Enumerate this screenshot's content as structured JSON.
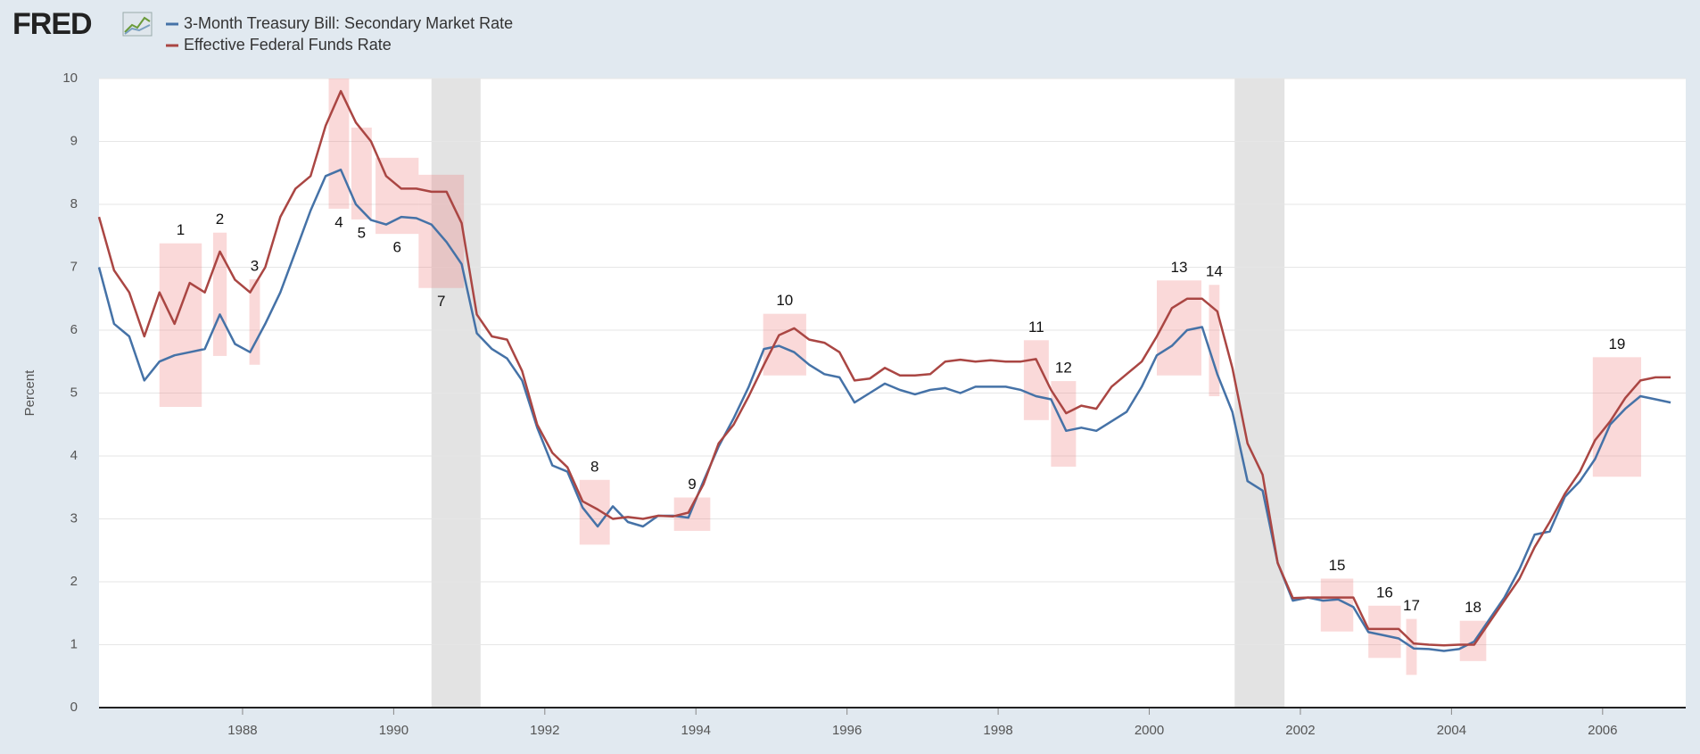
{
  "logo": "FRED",
  "chart_data": {
    "type": "line",
    "ylabel": "Percent",
    "xlim": [
      1986.1,
      2007.1
    ],
    "xticks": [
      1988,
      1990,
      1992,
      1994,
      1996,
      1998,
      2000,
      2002,
      2004,
      2006
    ],
    "ylim": [
      0,
      10
    ],
    "yticks": [
      0,
      1,
      2,
      3,
      4,
      5,
      6,
      7,
      8,
      9,
      10
    ],
    "grid": true,
    "legend": "top-left",
    "x": [
      1986.1,
      1986.3,
      1986.5,
      1986.7,
      1986.9,
      1987.1,
      1987.3,
      1987.5,
      1987.7,
      1987.9,
      1988.1,
      1988.3,
      1988.5,
      1988.7,
      1988.9,
      1989.1,
      1989.3,
      1989.5,
      1989.7,
      1989.9,
      1990.1,
      1990.3,
      1990.5,
      1990.7,
      1990.9,
      1991.1,
      1991.3,
      1991.5,
      1991.7,
      1991.9,
      1992.1,
      1992.3,
      1992.5,
      1992.7,
      1992.9,
      1993.1,
      1993.3,
      1993.5,
      1993.7,
      1993.9,
      1994.1,
      1994.3,
      1994.5,
      1994.7,
      1994.9,
      1995.1,
      1995.3,
      1995.5,
      1995.7,
      1995.9,
      1996.1,
      1996.3,
      1996.5,
      1996.7,
      1996.9,
      1997.1,
      1997.3,
      1997.5,
      1997.7,
      1997.9,
      1998.1,
      1998.3,
      1998.5,
      1998.7,
      1998.9,
      1999.1,
      1999.3,
      1999.5,
      1999.7,
      1999.9,
      2000.1,
      2000.3,
      2000.5,
      2000.7,
      2000.9,
      2001.1,
      2001.3,
      2001.5,
      2001.7,
      2001.9,
      2002.1,
      2002.3,
      2002.5,
      2002.7,
      2002.9,
      2003.1,
      2003.3,
      2003.5,
      2003.7,
      2003.9,
      2004.1,
      2004.3,
      2004.5,
      2004.7,
      2004.9,
      2005.1,
      2005.3,
      2005.5,
      2005.7,
      2005.9,
      2006.1,
      2006.3,
      2006.5,
      2006.7,
      2006.9
    ],
    "series": [
      {
        "name": "3-Month Treasury Bill: Secondary Market Rate",
        "color": "#4572a7",
        "values": [
          7.0,
          6.1,
          5.9,
          5.2,
          5.5,
          5.6,
          5.65,
          5.7,
          6.25,
          5.78,
          5.65,
          6.1,
          6.6,
          7.25,
          7.9,
          8.45,
          8.55,
          8.0,
          7.75,
          7.68,
          7.8,
          7.78,
          7.68,
          7.4,
          7.05,
          5.95,
          5.7,
          5.55,
          5.2,
          4.45,
          3.85,
          3.75,
          3.18,
          2.88,
          3.2,
          2.95,
          2.88,
          3.05,
          3.05,
          3.02,
          3.6,
          4.15,
          4.6,
          5.1,
          5.7,
          5.75,
          5.65,
          5.45,
          5.3,
          5.25,
          4.85,
          5.0,
          5.15,
          5.05,
          4.98,
          5.05,
          5.08,
          5.0,
          5.1,
          5.1,
          5.1,
          5.05,
          4.95,
          4.9,
          4.4,
          4.45,
          4.4,
          4.55,
          4.7,
          5.1,
          5.6,
          5.75,
          6.0,
          6.05,
          5.3,
          4.7,
          3.6,
          3.45,
          2.3,
          1.7,
          1.75,
          1.7,
          1.72,
          1.6,
          1.2,
          1.15,
          1.1,
          0.94,
          0.93,
          0.9,
          0.93,
          1.05,
          1.4,
          1.75,
          2.2,
          2.75,
          2.8,
          3.35,
          3.6,
          3.95,
          4.5,
          4.75,
          4.95,
          4.9,
          4.85
        ]
      },
      {
        "name": "Effective Federal Funds Rate",
        "color": "#aa4643",
        "values": [
          7.8,
          6.95,
          6.6,
          5.9,
          6.6,
          6.1,
          6.75,
          6.6,
          7.25,
          6.8,
          6.6,
          7.0,
          7.8,
          8.25,
          8.45,
          9.25,
          9.8,
          9.3,
          9.0,
          8.45,
          8.25,
          8.25,
          8.2,
          8.2,
          7.7,
          6.25,
          5.9,
          5.85,
          5.35,
          4.5,
          4.05,
          3.82,
          3.28,
          3.15,
          3.0,
          3.03,
          3.0,
          3.05,
          3.04,
          3.1,
          3.55,
          4.2,
          4.5,
          4.95,
          5.45,
          5.92,
          6.03,
          5.85,
          5.8,
          5.65,
          5.2,
          5.23,
          5.4,
          5.28,
          5.28,
          5.3,
          5.5,
          5.53,
          5.5,
          5.52,
          5.5,
          5.5,
          5.54,
          5.05,
          4.68,
          4.8,
          4.75,
          5.1,
          5.3,
          5.5,
          5.9,
          6.35,
          6.5,
          6.5,
          6.3,
          5.4,
          4.2,
          3.7,
          2.3,
          1.74,
          1.75,
          1.75,
          1.75,
          1.75,
          1.25,
          1.25,
          1.25,
          1.02,
          1.0,
          0.99,
          1.0,
          1.0,
          1.35,
          1.7,
          2.05,
          2.55,
          2.95,
          3.4,
          3.75,
          4.25,
          4.55,
          4.92,
          5.2,
          5.25,
          5.25
        ]
      }
    ],
    "recessions": [
      [
        1990.5,
        1991.15
      ],
      [
        2001.13,
        2001.79
      ]
    ],
    "annotations": [
      {
        "text": "1",
        "x": [
          1986.9,
          1987.46
        ],
        "y": [
          4.78,
          7.38
        ],
        "label_side": "above"
      },
      {
        "text": "2",
        "x": [
          1987.61,
          1987.79
        ],
        "y": [
          5.59,
          7.55
        ],
        "label_side": "above"
      },
      {
        "text": "3",
        "x": [
          1988.09,
          1988.23
        ],
        "y": [
          5.45,
          6.81
        ],
        "label_side": "above"
      },
      {
        "text": "4",
        "x": [
          1989.14,
          1989.41
        ],
        "y": [
          7.93,
          10.0
        ],
        "label_side": "below"
      },
      {
        "text": "5",
        "x": [
          1989.44,
          1989.71
        ],
        "y": [
          7.76,
          9.22
        ],
        "label_side": "below"
      },
      {
        "text": "6",
        "x": [
          1989.76,
          1990.33
        ],
        "y": [
          7.53,
          8.74
        ],
        "label_side": "below"
      },
      {
        "text": "7",
        "x": [
          1990.33,
          1990.93
        ],
        "y": [
          6.67,
          8.47
        ],
        "label_side": "below"
      },
      {
        "text": "8",
        "x": [
          1992.46,
          1992.86
        ],
        "y": [
          2.59,
          3.62
        ],
        "label_side": "above"
      },
      {
        "text": "9",
        "x": [
          1993.71,
          1994.19
        ],
        "y": [
          2.81,
          3.34
        ],
        "label_side": "above"
      },
      {
        "text": "10",
        "x": [
          1994.89,
          1995.46
        ],
        "y": [
          5.28,
          6.26
        ],
        "label_side": "above"
      },
      {
        "text": "11",
        "x": [
          1998.34,
          1998.67
        ],
        "y": [
          4.57,
          5.84
        ],
        "label_side": "above"
      },
      {
        "text": "12",
        "x": [
          1998.7,
          1999.03
        ],
        "y": [
          3.83,
          5.19
        ],
        "label_side": "above"
      },
      {
        "text": "13",
        "x": [
          2000.1,
          2000.69
        ],
        "y": [
          5.28,
          6.79
        ],
        "label_side": "above"
      },
      {
        "text": "14",
        "x": [
          2000.79,
          2000.93
        ],
        "y": [
          4.95,
          6.72
        ],
        "label_side": "above"
      },
      {
        "text": "15",
        "x": [
          2002.27,
          2002.7
        ],
        "y": [
          1.21,
          2.05
        ],
        "label_side": "above"
      },
      {
        "text": "16",
        "x": [
          2002.9,
          2003.33
        ],
        "y": [
          0.79,
          1.62
        ],
        "label_side": "above"
      },
      {
        "text": "17",
        "x": [
          2003.4,
          2003.54
        ],
        "y": [
          0.52,
          1.41
        ],
        "label_side": "above"
      },
      {
        "text": "18",
        "x": [
          2004.11,
          2004.46
        ],
        "y": [
          0.74,
          1.38
        ],
        "label_side": "above"
      },
      {
        "text": "19",
        "x": [
          2005.87,
          2006.51
        ],
        "y": [
          3.67,
          5.57
        ],
        "label_side": "above"
      }
    ]
  }
}
